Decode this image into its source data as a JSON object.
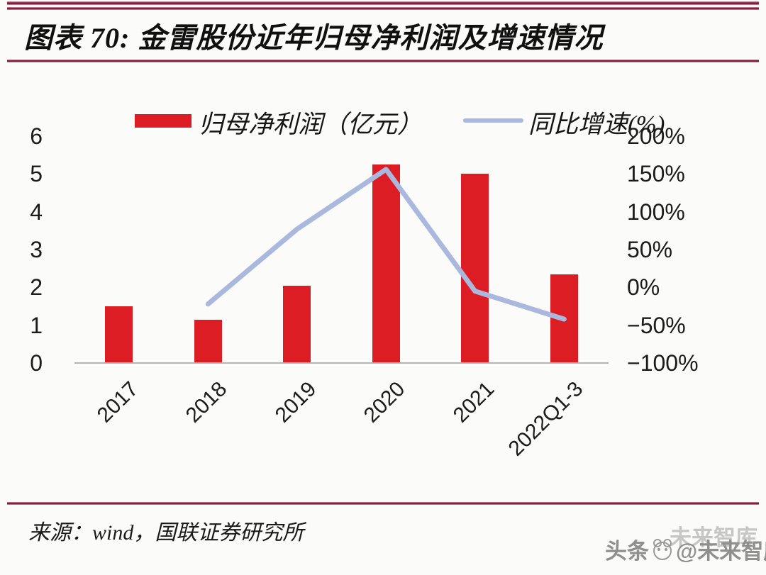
{
  "figure": {
    "title": "图表 70: 金雷股份近年归母净利润及增速情况",
    "source": "来源：wind，国联证券研究所",
    "watermark": {
      "prefix": "头条",
      "suffix": "@未来智库",
      "ghost": "未来智库"
    }
  },
  "legend": {
    "bar_label": "归母净利润（亿元）",
    "line_label": "同比增速(%)"
  },
  "colors": {
    "bar": "#DC1E24",
    "line": "#A9B8DC",
    "axis_line": "#B6B6B6",
    "text": "#1B1B1B",
    "rule": "#72172F",
    "watermark": "#8F8F8D"
  },
  "chart_data": {
    "type": "bar+line",
    "title": "金雷股份近年归母净利润及增速情况",
    "categories": [
      "2017",
      "2018",
      "2019",
      "2020",
      "2021",
      "2022Q1-3"
    ],
    "series": [
      {
        "name": "归母净利润（亿元）",
        "type": "bar",
        "axis": "left",
        "values": [
          1.5,
          1.15,
          2.05,
          5.25,
          5.0,
          2.35
        ]
      },
      {
        "name": "同比增速(%)",
        "type": "line",
        "axis": "right",
        "values": [
          null,
          -22,
          77,
          156,
          -5,
          -42
        ]
      }
    ],
    "left_axis": {
      "label": "归母净利润（亿元）",
      "min": 0,
      "max": 6,
      "ticks": [
        {
          "label": "6",
          "value": 6
        },
        {
          "label": "5",
          "value": 5
        },
        {
          "label": "4",
          "value": 4
        },
        {
          "label": "3",
          "value": 3
        },
        {
          "label": "2",
          "value": 2
        },
        {
          "label": "1",
          "value": 1
        },
        {
          "label": "0",
          "value": 0
        }
      ]
    },
    "right_axis": {
      "label": "同比增速(%)",
      "min": -100,
      "max": 200,
      "ticks": [
        {
          "label": "200%",
          "value": 200
        },
        {
          "label": "150%",
          "value": 150
        },
        {
          "label": "100%",
          "value": 100
        },
        {
          "label": "50%",
          "value": 50
        },
        {
          "label": "0%",
          "value": 0
        },
        {
          "label": "−50%",
          "value": -50
        },
        {
          "label": "−100%",
          "value": -100
        }
      ]
    },
    "legend_position": "top",
    "grid": false
  }
}
